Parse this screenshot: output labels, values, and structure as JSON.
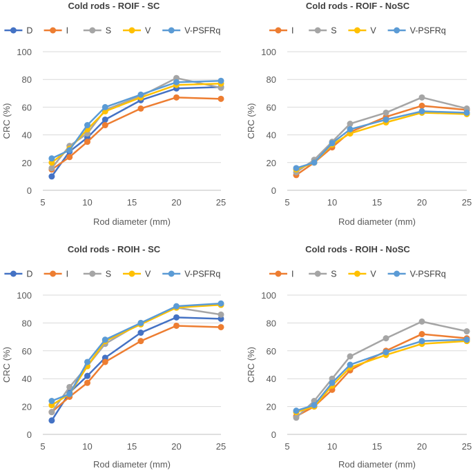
{
  "colors": {
    "D": "#4472C4",
    "I": "#ED7D31",
    "S": "#A5A5A5",
    "V": "#FFC000",
    "V-PSFRq": "#5B9BD5"
  },
  "chart_data": [
    {
      "type": "line",
      "title": "Cold rods - ROIF - SC",
      "xlabel": "Rod diameter (mm)",
      "ylabel": "CRC (%)",
      "x": [
        6,
        8,
        10,
        12,
        16,
        20,
        25
      ],
      "xlim": [
        5,
        25
      ],
      "xticks": [
        "5",
        "10",
        "15",
        "20",
        "25"
      ],
      "ylim": [
        0,
        100
      ],
      "yticks": [
        "0",
        "20",
        "40",
        "60",
        "80",
        "100"
      ],
      "legend_position": "top",
      "grid": true,
      "series": [
        {
          "name": "D",
          "values": [
            10,
            28,
            38,
            51,
            65,
            73.5,
            74.5
          ]
        },
        {
          "name": "I",
          "values": [
            15,
            24,
            35,
            47,
            59,
            67,
            66
          ]
        },
        {
          "name": "S",
          "values": [
            16,
            32,
            41,
            58,
            68,
            81,
            74
          ]
        },
        {
          "name": "V",
          "values": [
            20,
            30,
            44,
            57,
            67,
            76,
            77
          ]
        },
        {
          "name": "V-PSFRq",
          "values": [
            23,
            29,
            47,
            60,
            69,
            78,
            79
          ]
        }
      ]
    },
    {
      "type": "line",
      "title": "Cold rods - ROIF - NoSC",
      "xlabel": "Rod diameter (mm)",
      "ylabel": "CRC (%)",
      "x": [
        6,
        8,
        10,
        12,
        16,
        20,
        25
      ],
      "xlim": [
        5,
        25
      ],
      "xticks": [
        "5",
        "10",
        "15",
        "20",
        "25"
      ],
      "ylim": [
        0,
        100
      ],
      "yticks": [
        "0",
        "20",
        "40",
        "60",
        "80",
        "100"
      ],
      "legend_position": "top",
      "grid": true,
      "series": [
        {
          "name": "I",
          "values": [
            11,
            20,
            31,
            42,
            53,
            61,
            58
          ]
        },
        {
          "name": "S",
          "values": [
            13,
            22,
            35,
            48,
            56,
            67,
            59
          ]
        },
        {
          "name": "V",
          "values": [
            15,
            20,
            33,
            41,
            49,
            56,
            55
          ]
        },
        {
          "name": "V-PSFRq",
          "values": [
            16,
            20,
            34,
            44,
            51,
            57,
            56
          ]
        }
      ]
    },
    {
      "type": "line",
      "title": "Cold rods - ROIH - SC",
      "xlabel": "Rod diameter (mm)",
      "ylabel": "CRC (%)",
      "x": [
        6,
        8,
        10,
        12,
        16,
        20,
        25
      ],
      "xlim": [
        5,
        25
      ],
      "xticks": [
        "5",
        "10",
        "15",
        "20",
        "25"
      ],
      "ylim": [
        0,
        100
      ],
      "yticks": [
        "0",
        "20",
        "40",
        "60",
        "80",
        "100"
      ],
      "legend_position": "top",
      "grid": true,
      "series": [
        {
          "name": "D",
          "values": [
            10,
            30,
            42,
            55,
            73,
            84,
            83
          ]
        },
        {
          "name": "I",
          "values": [
            16,
            27,
            37,
            52,
            67,
            78,
            77
          ]
        },
        {
          "name": "S",
          "values": [
            16,
            34,
            49,
            65,
            80,
            91,
            86
          ]
        },
        {
          "name": "V",
          "values": [
            21,
            29,
            49,
            67,
            79,
            91,
            93
          ]
        },
        {
          "name": "V-PSFRq",
          "values": [
            24,
            29,
            52,
            68,
            80,
            92,
            94
          ]
        }
      ]
    },
    {
      "type": "line",
      "title": "Cold rods - ROIH - NoSC",
      "xlabel": "Rod diameter (mm)",
      "ylabel": "CRC (%)",
      "x": [
        6,
        8,
        10,
        12,
        16,
        20,
        25
      ],
      "xlim": [
        5,
        25
      ],
      "xticks": [
        "5",
        "10",
        "15",
        "20",
        "25"
      ],
      "ylim": [
        0,
        100
      ],
      "yticks": [
        "0",
        "20",
        "40",
        "60",
        "80",
        "100"
      ],
      "legend_position": "top",
      "grid": true,
      "series": [
        {
          "name": "I",
          "values": [
            13,
            20,
            32,
            46,
            60,
            72,
            69
          ]
        },
        {
          "name": "S",
          "values": [
            12,
            24,
            40,
            56,
            69,
            81,
            74
          ]
        },
        {
          "name": "V",
          "values": [
            16,
            20,
            35,
            48,
            57,
            65,
            67
          ]
        },
        {
          "name": "V-PSFRq",
          "values": [
            17,
            21,
            37,
            50,
            59,
            67,
            68
          ]
        }
      ]
    }
  ]
}
